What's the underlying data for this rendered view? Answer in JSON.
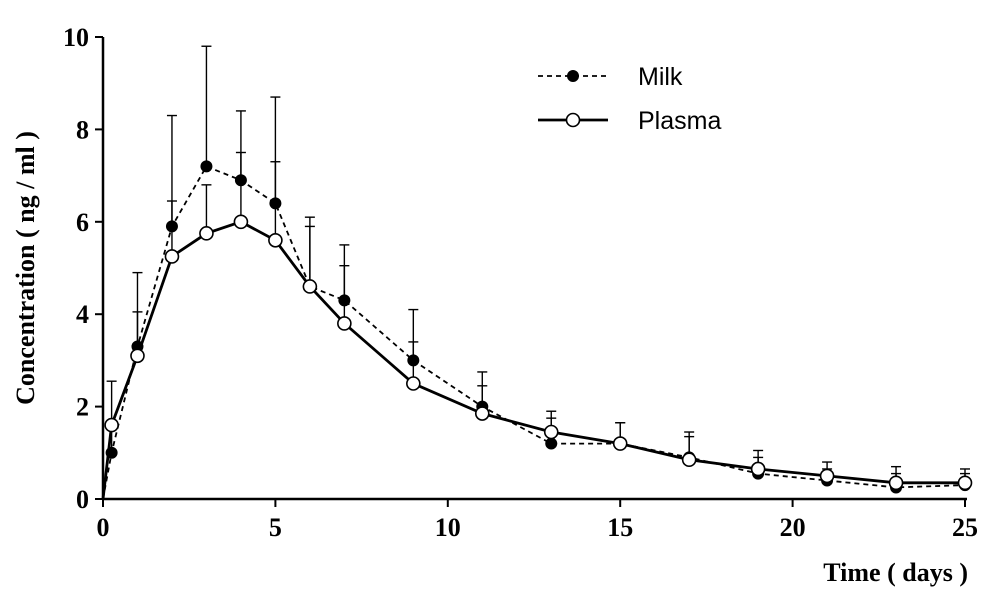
{
  "chart_data": {
    "type": "line",
    "title": "",
    "xlabel": "Time ( days )",
    "ylabel": "Concentration ( ng / ml )",
    "xlim": [
      0,
      25
    ],
    "ylim": [
      0,
      10
    ],
    "xticks": [
      "0",
      "5",
      "10",
      "15",
      "20",
      "25"
    ],
    "yticks": [
      "0",
      "2",
      "4",
      "6",
      "8",
      "10"
    ],
    "grid": false,
    "legend": "top-right",
    "series": [
      {
        "name": "Milk",
        "style": "dashed",
        "marker": "filled-circle",
        "color": "#000000",
        "x": [
          0,
          0.25,
          1,
          2,
          3,
          4,
          5,
          6,
          7,
          9,
          11,
          13,
          15,
          17,
          19,
          21,
          23,
          25
        ],
        "y": [
          0,
          1.0,
          3.3,
          5.9,
          7.2,
          6.9,
          6.4,
          4.6,
          4.3,
          3.0,
          2.0,
          1.2,
          1.2,
          0.9,
          0.55,
          0.4,
          0.25,
          0.3
        ],
        "err": [
          0,
          0.5,
          1.6,
          2.4,
          2.6,
          1.5,
          2.3,
          1.5,
          1.2,
          1.1,
          0.75,
          0.55,
          0.45,
          0.55,
          0.35,
          0.25,
          0.3,
          0.25
        ]
      },
      {
        "name": "Plasma",
        "style": "solid",
        "marker": "open-circle",
        "color": "#000000",
        "x": [
          0,
          0.25,
          1,
          2,
          3,
          4,
          5,
          6,
          7,
          9,
          11,
          13,
          15,
          17,
          19,
          21,
          23,
          25
        ],
        "y": [
          0,
          1.6,
          3.1,
          5.25,
          5.75,
          6.0,
          5.6,
          4.6,
          3.8,
          2.5,
          1.85,
          1.45,
          1.2,
          0.85,
          0.65,
          0.5,
          0.35,
          0.35
        ],
        "err": [
          0,
          0.95,
          0.95,
          1.2,
          1.05,
          1.5,
          1.7,
          1.3,
          1.25,
          0.9,
          0.6,
          0.45,
          0.45,
          0.5,
          0.4,
          0.3,
          0.35,
          0.3
        ]
      }
    ]
  }
}
